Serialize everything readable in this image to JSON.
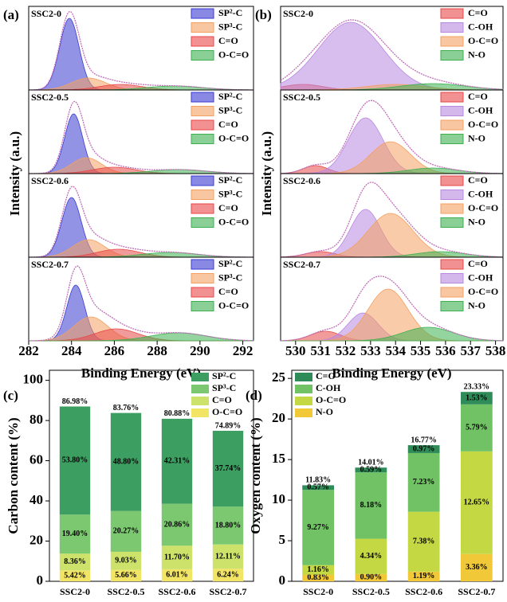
{
  "chart_data": [
    {
      "type": "xps",
      "panel_label": "(a)",
      "x_label": "Binding Energy (eV)",
      "y_label": "Intensity (a.u.)",
      "xlim": [
        282,
        292.5
      ],
      "xticks": [
        282,
        284,
        286,
        288,
        290,
        292
      ],
      "ylim": [
        0,
        1.05
      ],
      "spectra": [
        "SSC2-0",
        "SSC2-0.5",
        "SSC2-0.6",
        "SSC2-0.7"
      ],
      "envelope_color": "#c070b8",
      "series": [
        {
          "name": "SP²-C",
          "color": "#3a3ad0",
          "centers": [
            283.9,
            284.1,
            284.0,
            284.2
          ],
          "heights": [
            0.9,
            0.75,
            0.75,
            0.7
          ],
          "widths": [
            0.45,
            0.42,
            0.45,
            0.42
          ]
        },
        {
          "name": "SP³-C",
          "color": "#f4a060",
          "centers": [
            284.8,
            284.7,
            284.8,
            284.9
          ],
          "heights": [
            0.15,
            0.2,
            0.22,
            0.3
          ],
          "widths": [
            0.8,
            0.7,
            0.75,
            0.8
          ]
        },
        {
          "name": "C=O",
          "color": "#e84848",
          "centers": [
            286.3,
            286.0,
            286.2,
            286.1
          ],
          "heights": [
            0.07,
            0.08,
            0.1,
            0.15
          ],
          "widths": [
            1.0,
            1.0,
            1.0,
            1.0
          ]
        },
        {
          "name": "O-C=O",
          "color": "#3cb050",
          "centers": [
            288.8,
            289.0,
            288.6,
            289.0
          ],
          "heights": [
            0.05,
            0.05,
            0.06,
            0.1
          ],
          "widths": [
            1.3,
            1.3,
            1.3,
            1.3
          ]
        }
      ]
    },
    {
      "type": "xps",
      "panel_label": "(b)",
      "x_label": "Binding Energy (eV)",
      "y_label": "Intensity (a.u.)",
      "xlim": [
        529.4,
        538.3
      ],
      "xticks": [
        530,
        531,
        532,
        533,
        534,
        535,
        536,
        537,
        538
      ],
      "ylim": [
        0,
        1.05
      ],
      "spectra": [
        "SSC2-0",
        "SSC2-0.5",
        "SSC2-0.6",
        "SSC2-0.7"
      ],
      "envelope_color": "#c070b8",
      "series": [
        {
          "name": "C=O",
          "color": "#e84848",
          "centers": [
            530.3,
            530.8,
            531.0,
            531.2
          ],
          "heights": [
            0.07,
            0.1,
            0.07,
            0.12
          ],
          "widths": [
            0.8,
            0.5,
            0.6,
            0.6
          ]
        },
        {
          "name": "C-OH",
          "color": "#b888e0",
          "centers": [
            532.2,
            532.8,
            532.8,
            532.7
          ],
          "heights": [
            0.85,
            0.7,
            0.6,
            0.35
          ],
          "widths": [
            1.3,
            0.7,
            0.6,
            0.6
          ]
        },
        {
          "name": "O-C=O",
          "color": "#f4a060",
          "centers": [
            534.0,
            533.8,
            533.8,
            533.7
          ],
          "heights": [
            0.07,
            0.4,
            0.55,
            0.65
          ],
          "widths": [
            1.2,
            0.8,
            0.9,
            0.8
          ]
        },
        {
          "name": "N-O",
          "color": "#3cb050",
          "centers": [
            535.5,
            535.5,
            535.8,
            535.3
          ],
          "heights": [
            0.08,
            0.07,
            0.07,
            0.17
          ],
          "widths": [
            1.3,
            1.0,
            1.0,
            1.0
          ]
        }
      ]
    },
    {
      "type": "stacked_bar",
      "panel_label": "(c)",
      "y_label": "Carbon content (%)",
      "categories": [
        "SSC2-0",
        "SSC2-0.5",
        "SSC2-0.6",
        "SSC2-0.7"
      ],
      "ylim": [
        0,
        105
      ],
      "yticks": [
        0,
        20,
        40,
        60,
        80,
        100
      ],
      "series": [
        {
          "name": "O-C=O",
          "color": "#f2e464",
          "values": [
            5.42,
            5.66,
            6.01,
            6.24
          ],
          "value_labels": [
            "5.42%",
            "5.66%",
            "6.01%",
            "6.24%"
          ]
        },
        {
          "name": "C=O",
          "color": "#cce26a",
          "values": [
            8.36,
            9.03,
            11.7,
            12.11
          ],
          "value_labels": [
            "8.36%",
            "9.03%",
            "11.70%",
            "12.11%"
          ]
        },
        {
          "name": "SP³-C",
          "color": "#7cc870",
          "values": [
            19.4,
            20.27,
            20.86,
            18.8
          ],
          "value_labels": [
            "19.40%",
            "20.27%",
            "20.86%",
            "18.80%"
          ]
        },
        {
          "name": "SP²-C",
          "color": "#3d9e62",
          "values": [
            53.8,
            48.8,
            42.31,
            37.74
          ],
          "value_labels": [
            "53.80%",
            "48.80%",
            "42.31%",
            "37.74%"
          ]
        }
      ],
      "totals": [
        86.98,
        83.76,
        80.88,
        74.89
      ],
      "total_labels": [
        "86.98%",
        "83.76%",
        "80.88%",
        "74.89%"
      ]
    },
    {
      "type": "stacked_bar",
      "panel_label": "(d)",
      "y_label": "Oxygen content (%)",
      "categories": [
        "SSC2-0",
        "SSC2-0.5",
        "SSC2-0.6",
        "SSC2-0.7"
      ],
      "ylim": [
        0,
        26
      ],
      "yticks": [
        0,
        5,
        10,
        15,
        20,
        25
      ],
      "series": [
        {
          "name": "N-O",
          "color": "#f0c838",
          "values": [
            0.83,
            0.9,
            1.19,
            3.36
          ],
          "value_labels": [
            "0.83%",
            "0.90%",
            "1.19%",
            "3.36%"
          ]
        },
        {
          "name": "O-C=O",
          "color": "#c4d844",
          "values": [
            1.16,
            4.34,
            7.38,
            12.65
          ],
          "value_labels": [
            "1.16%",
            "4.34%",
            "7.38%",
            "12.65%"
          ]
        },
        {
          "name": "C-OH",
          "color": "#70c264",
          "values": [
            9.27,
            8.18,
            7.23,
            5.79
          ],
          "value_labels": [
            "9.27%",
            "8.18%",
            "7.23%",
            "5.79%"
          ]
        },
        {
          "name": "C=O",
          "color": "#2f8c58",
          "values": [
            0.57,
            0.59,
            0.97,
            1.53
          ],
          "value_labels": [
            "0.57%",
            "0.59%",
            "0.97%",
            "1.53%"
          ]
        }
      ],
      "totals": [
        11.83,
        14.01,
        16.77,
        23.33
      ],
      "total_labels": [
        "11.83%",
        "14.01%",
        "16.77%",
        "23.33%"
      ]
    }
  ]
}
